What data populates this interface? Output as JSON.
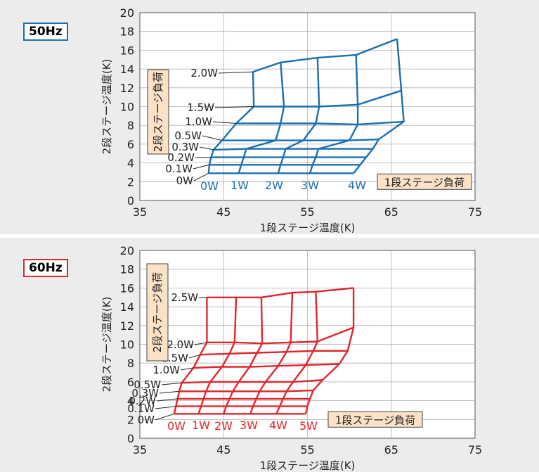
{
  "chart_data": [
    {
      "type": "line",
      "title": "50Hz",
      "title_border_color": "#1a6fb0",
      "line_color": "#1a6fb0",
      "xlabel": "1段ステージ温度(K)",
      "ylabel": "2段ステージ温度(K)",
      "xlim": [
        35,
        75
      ],
      "ylim": [
        0,
        20
      ],
      "xticks": [
        "35",
        "45",
        "55",
        "65",
        "75"
      ],
      "yticks": [
        "0",
        "2",
        "4",
        "6",
        "8",
        "10",
        "12",
        "14",
        "16",
        "18",
        "20"
      ],
      "grid": true,
      "stage1_axis_label": "1段ステージ負荷",
      "stage2_axis_label": "2段ステージ負荷",
      "stage1_loads": [
        "0W",
        "1W",
        "2W",
        "3W",
        "4W"
      ],
      "stage2_loads": [
        "0W",
        "0.1W",
        "0.2W",
        "0.3W",
        "0.5W",
        "1.0W",
        "1.5W",
        "2.0W"
      ],
      "points": [
        [
          [
            43.2,
            2.9
          ],
          [
            46.8,
            2.9
          ],
          [
            51.5,
            2.9
          ],
          [
            55.3,
            2.9
          ],
          [
            60.5,
            2.9
          ]
        ],
        [
          [
            43.3,
            3.8
          ],
          [
            47.1,
            3.8
          ],
          [
            51.8,
            3.8
          ],
          [
            55.6,
            3.8
          ],
          [
            61.3,
            3.8
          ]
        ],
        [
          [
            43.5,
            4.6
          ],
          [
            47.4,
            4.6
          ],
          [
            52.1,
            4.6
          ],
          [
            56.0,
            4.6
          ],
          [
            62.0,
            4.6
          ]
        ],
        [
          [
            43.8,
            5.4
          ],
          [
            47.7,
            5.5
          ],
          [
            52.4,
            5.5
          ],
          [
            56.3,
            5.5
          ],
          [
            62.8,
            5.5
          ]
        ],
        [
          [
            44.8,
            6.4
          ],
          [
            51.2,
            6.4
          ],
          [
            54.5,
            6.4
          ],
          [
            60.0,
            6.4
          ],
          [
            63.5,
            6.5
          ]
        ],
        [
          [
            46.5,
            8.2
          ],
          [
            51.8,
            8.2
          ],
          [
            56.0,
            8.2
          ],
          [
            61.0,
            8.1
          ],
          [
            66.5,
            8.4
          ]
        ],
        [
          [
            48.6,
            10.0
          ],
          [
            52.2,
            10.0
          ],
          [
            56.4,
            10.0
          ],
          [
            61.0,
            10.2
          ],
          [
            66.2,
            11.7
          ]
        ],
        [
          [
            48.5,
            13.7
          ],
          [
            51.8,
            14.7
          ],
          [
            56.2,
            15.2
          ],
          [
            60.8,
            15.5
          ],
          [
            65.7,
            17.2
          ]
        ]
      ]
    },
    {
      "type": "line",
      "title": "60Hz",
      "title_border_color": "#e0262c",
      "line_color": "#e0262c",
      "xlabel": "1段ステージ温度(K)",
      "ylabel": "2段ステージ温度(K)",
      "xlim": [
        35,
        75
      ],
      "ylim": [
        0,
        20
      ],
      "xticks": [
        "35",
        "45",
        "55",
        "65",
        "75"
      ],
      "yticks": [
        "0",
        "2",
        "4",
        "6",
        "8",
        "10",
        "12",
        "14",
        "16",
        "18",
        "20"
      ],
      "grid": true,
      "stage1_axis_label": "1段ステージ負荷",
      "stage2_axis_label": "2段ステージ負荷",
      "stage1_loads": [
        "0W",
        "1W",
        "2W",
        "3W",
        "4W",
        "5W"
      ],
      "stage2_loads": [
        "0W",
        "0.1W",
        "0.2W",
        "0.3W",
        "0.5W",
        "1.0W",
        "1.5W",
        "2.0W",
        "2.5W"
      ],
      "points": [
        [
          [
            39.1,
            2.6
          ],
          [
            42.0,
            2.6
          ],
          [
            45.0,
            2.6
          ],
          [
            48.2,
            2.6
          ],
          [
            51.3,
            2.6
          ],
          [
            54.8,
            2.6
          ]
        ],
        [
          [
            39.3,
            3.4
          ],
          [
            42.3,
            3.4
          ],
          [
            45.3,
            3.4
          ],
          [
            48.5,
            3.4
          ],
          [
            51.7,
            3.4
          ],
          [
            55.0,
            3.4
          ]
        ],
        [
          [
            39.5,
            4.2
          ],
          [
            42.6,
            4.2
          ],
          [
            45.7,
            4.2
          ],
          [
            48.9,
            4.2
          ],
          [
            52.1,
            4.2
          ],
          [
            55.3,
            4.2
          ]
        ],
        [
          [
            39.7,
            5.0
          ],
          [
            42.9,
            5.0
          ],
          [
            46.1,
            5.0
          ],
          [
            49.3,
            5.0
          ],
          [
            52.5,
            5.0
          ],
          [
            55.7,
            5.1
          ]
        ],
        [
          [
            40.0,
            5.9
          ],
          [
            43.4,
            6.0
          ],
          [
            46.8,
            6.0
          ],
          [
            50.0,
            6.0
          ],
          [
            53.3,
            6.0
          ],
          [
            56.8,
            6.2
          ]
        ],
        [
          [
            41.4,
            7.5
          ],
          [
            44.8,
            7.6
          ],
          [
            48.1,
            7.6
          ],
          [
            51.5,
            7.7
          ],
          [
            54.8,
            7.8
          ],
          [
            58.8,
            7.9
          ]
        ],
        [
          [
            42.2,
            8.9
          ],
          [
            45.7,
            9.0
          ],
          [
            49.0,
            9.1
          ],
          [
            52.5,
            9.2
          ],
          [
            55.7,
            9.3
          ],
          [
            59.8,
            9.3
          ]
        ],
        [
          [
            43.0,
            10.2
          ],
          [
            46.3,
            10.2
          ],
          [
            49.6,
            10.1
          ],
          [
            53.0,
            10.2
          ],
          [
            56.2,
            10.3
          ],
          [
            60.5,
            11.8
          ]
        ],
        [
          [
            43.0,
            15.0
          ],
          [
            46.5,
            15.0
          ],
          [
            49.5,
            15.0
          ],
          [
            53.2,
            15.5
          ],
          [
            56.0,
            15.6
          ],
          [
            60.5,
            16.0
          ]
        ]
      ]
    }
  ]
}
